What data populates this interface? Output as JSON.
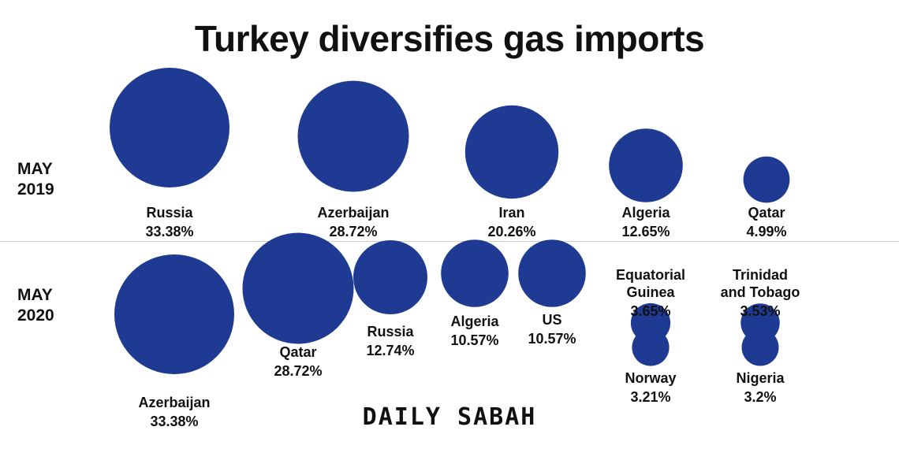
{
  "title": "Turkey diversifies gas imports",
  "brand": "DAILY SABAH",
  "colors": {
    "bubble": "#1f3a93",
    "text": "#111111"
  },
  "chart_data": [
    {
      "type": "bubble",
      "label_lines": [
        "MAY",
        "2019"
      ],
      "unit": "%",
      "points": [
        {
          "name": [
            "Russia"
          ],
          "value": "33.38%",
          "size": 33.38
        },
        {
          "name": [
            "Azerbaijan"
          ],
          "value": "28.72%",
          "size": 28.72
        },
        {
          "name": [
            "Iran"
          ],
          "value": "20.26%",
          "size": 20.26
        },
        {
          "name": [
            "Algeria"
          ],
          "value": "12.65%",
          "size": 12.65
        },
        {
          "name": [
            "Qatar"
          ],
          "value": "4.99%",
          "size": 4.99
        }
      ]
    },
    {
      "type": "bubble",
      "label_lines": [
        "MAY",
        "2020"
      ],
      "unit": "%",
      "points": [
        {
          "name": [
            "Azerbaijan"
          ],
          "value": "33.38%",
          "size": 33.38
        },
        {
          "name": [
            "Qatar"
          ],
          "value": "28.72%",
          "size": 28.72
        },
        {
          "name": [
            "Russia"
          ],
          "value": "12.74%",
          "size": 12.74
        },
        {
          "name": [
            "Algeria"
          ],
          "value": "10.57%",
          "size": 10.57
        },
        {
          "name": [
            "US"
          ],
          "value": "10.57%",
          "size": 10.57
        },
        {
          "name": [
            "Equatorial",
            "Guinea"
          ],
          "value": "3.65%",
          "size": 3.65
        },
        {
          "name": [
            "Trinidad",
            "and Tobago"
          ],
          "value": "3.53%",
          "size": 3.53
        },
        {
          "name": [
            "Norway"
          ],
          "value": "3.21%",
          "size": 3.21
        },
        {
          "name": [
            "Nigeria"
          ],
          "value": "3.2%",
          "size": 3.2
        }
      ]
    }
  ]
}
